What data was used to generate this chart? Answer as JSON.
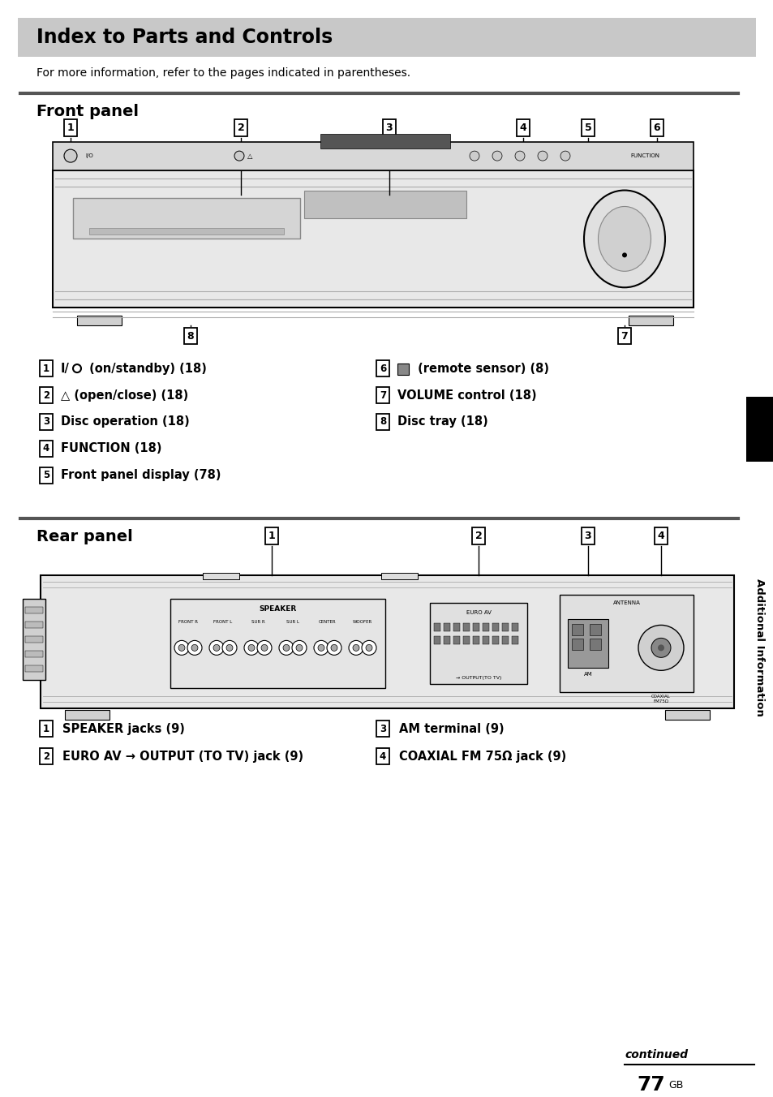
{
  "title": "Index to Parts and Controls",
  "title_bg": "#c8c8c8",
  "subtitle": "For more information, refer to the pages indicated in parentheses.",
  "front_panel_title": "Front panel",
  "rear_panel_title": "Rear panel",
  "front_items_left": [
    [
      "1",
      "I/(on/standby) (18)",
      "special_power"
    ],
    [
      "2",
      "∆ (open/close) (18)",
      "special_eject"
    ],
    [
      "3",
      "Disc operation (18)",
      "normal"
    ],
    [
      "4",
      "FUNCTION (18)",
      "normal"
    ],
    [
      "5",
      "Front panel display (78)",
      "normal"
    ]
  ],
  "front_items_right": [
    [
      "6",
      "(remote sensor) (8)",
      "special_sensor"
    ],
    [
      "7",
      "VOLUME control (18)",
      "normal"
    ],
    [
      "8",
      "Disc tray (18)",
      "normal"
    ]
  ],
  "rear_items_left": [
    [
      "1",
      "SPEAKER jacks (9)",
      "normal"
    ],
    [
      "2",
      "EURO AV → OUTPUT (TO TV) jack (9)",
      "special_euroav"
    ]
  ],
  "rear_items_right": [
    [
      "3",
      "AM terminal (9)",
      "normal"
    ],
    [
      "4",
      "COAXIAL FM 75Ω jack (9)",
      "normal"
    ]
  ],
  "side_label": "Additional Information",
  "page_number": "77",
  "continued_text": "continued",
  "bg_color": "#ffffff",
  "text_color": "#000000",
  "header_bg": "#c8c8c8",
  "section_line_color": "#555555"
}
